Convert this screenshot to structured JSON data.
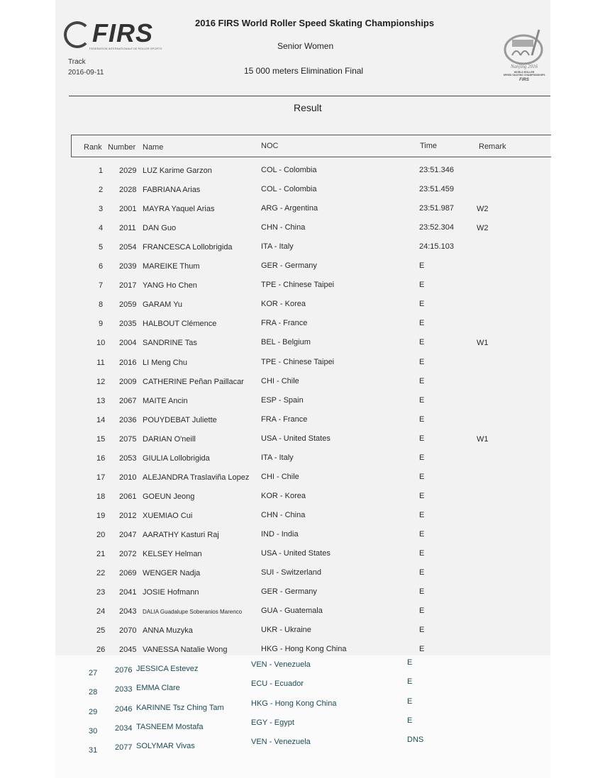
{
  "header": {
    "logo_text": "FIRS",
    "logo_subtitle": "FEDERATION INTERNATIONALE DE ROLLER SPORTS",
    "title": "2016 FIRS World Roller Speed Skating Championships",
    "category": "Senior Women",
    "event": "15 000 meters Elimination Final",
    "discipline": "Track",
    "date": "2016-09-11",
    "emblem_text": "Nanjing 2016 WORLD ROLLER SPEED SKATING CHAMPIONSHIPS FIRS",
    "section_title": "Result"
  },
  "columns": {
    "rank": "Rank",
    "number": "Number",
    "name": "Name",
    "noc": "NOC",
    "time": "Time",
    "remark": "Remark"
  },
  "rows": [
    {
      "rank": "1",
      "number": "2029",
      "name": "LUZ Karime Garzon",
      "noc": "COL - Colombia",
      "time": "23:51.346",
      "remark": ""
    },
    {
      "rank": "2",
      "number": "2028",
      "name": "FABRIANA Arias",
      "noc": "COL - Colombia",
      "time": "23:51.459",
      "remark": ""
    },
    {
      "rank": "3",
      "number": "2001",
      "name": "MAYRA Yaquel Arias",
      "noc": "ARG - Argentina",
      "time": "23:51.987",
      "remark": "W2"
    },
    {
      "rank": "4",
      "number": "2011",
      "name": "DAN Guo",
      "noc": "CHN - China",
      "time": "23:52.304",
      "remark": "W2"
    },
    {
      "rank": "5",
      "number": "2054",
      "name": "FRANCESCA Lollobrigida",
      "noc": "ITA - Italy",
      "time": "24:15.103",
      "remark": ""
    },
    {
      "rank": "6",
      "number": "2039",
      "name": "MAREIKE Thum",
      "noc": "GER - Germany",
      "time": "E",
      "remark": ""
    },
    {
      "rank": "7",
      "number": "2017",
      "name": "YANG Ho Chen",
      "noc": "TPE - Chinese Taipei",
      "time": "E",
      "remark": ""
    },
    {
      "rank": "8",
      "number": "2059",
      "name": "GARAM Yu",
      "noc": "KOR - Korea",
      "time": "E",
      "remark": ""
    },
    {
      "rank": "9",
      "number": "2035",
      "name": "HALBOUT Clémence",
      "noc": "FRA - France",
      "time": "E",
      "remark": ""
    },
    {
      "rank": "10",
      "number": "2004",
      "name": "SANDRINE Tas",
      "noc": "BEL - Belgium",
      "time": "E",
      "remark": "W1"
    },
    {
      "rank": "11",
      "number": "2016",
      "name": "LI Meng Chu",
      "noc": "TPE - Chinese Taipei",
      "time": "E",
      "remark": ""
    },
    {
      "rank": "12",
      "number": "2009",
      "name": "CATHERINE Peñan Paillacar",
      "noc": "CHI - Chile",
      "time": "E",
      "remark": ""
    },
    {
      "rank": "13",
      "number": "2067",
      "name": "MAITE Ancin",
      "noc": "ESP - Spain",
      "time": "E",
      "remark": ""
    },
    {
      "rank": "14",
      "number": "2036",
      "name": "POUYDEBAT Juliette",
      "noc": "FRA - France",
      "time": "E",
      "remark": ""
    },
    {
      "rank": "15",
      "number": "2075",
      "name": "DARIAN O'neill",
      "noc": "USA - United States",
      "time": "E",
      "remark": "W1"
    },
    {
      "rank": "16",
      "number": "2053",
      "name": "GIULIA Lollobrigida",
      "noc": "ITA - Italy",
      "time": "E",
      "remark": ""
    },
    {
      "rank": "17",
      "number": "2010",
      "name": "ALEJANDRA Traslaviña Lopez",
      "noc": "CHI - Chile",
      "time": "E",
      "remark": ""
    },
    {
      "rank": "18",
      "number": "2061",
      "name": "GOEUN Jeong",
      "noc": "KOR - Korea",
      "time": "E",
      "remark": ""
    },
    {
      "rank": "19",
      "number": "2012",
      "name": "XUEMIAO Cui",
      "noc": "CHN - China",
      "time": "E",
      "remark": ""
    },
    {
      "rank": "20",
      "number": "2047",
      "name": "AARATHY Kasturi Raj",
      "noc": "IND - India",
      "time": "E",
      "remark": ""
    },
    {
      "rank": "21",
      "number": "2072",
      "name": "KELSEY Helman",
      "noc": "USA - United States",
      "time": "E",
      "remark": ""
    },
    {
      "rank": "22",
      "number": "2069",
      "name": "WENGER Nadja",
      "noc": "SUI - Switzerland",
      "time": "E",
      "remark": ""
    },
    {
      "rank": "23",
      "number": "2041",
      "name": "JOSIE Hofmann",
      "noc": "GER - Germany",
      "time": "E",
      "remark": ""
    },
    {
      "rank": "24",
      "number": "2043",
      "name": "DALIA Guadalupe Soberanios Marenco",
      "noc": "GUA - Guatemala",
      "time": "E",
      "remark": ""
    },
    {
      "rank": "25",
      "number": "2070",
      "name": "ANNA Muzyka",
      "noc": "UKR - Ukraine",
      "time": "E",
      "remark": ""
    },
    {
      "rank": "26",
      "number": "2045",
      "name": "VANESSA Natalie Wong",
      "noc": "HKG - Hong Kong China",
      "time": "E",
      "remark": ""
    },
    {
      "rank": "27",
      "number": "2076",
      "name": "JESSICA Estevez",
      "noc": "VEN - Venezuela",
      "time": "E",
      "remark": ""
    },
    {
      "rank": "28",
      "number": "2033",
      "name": "EMMA Clare",
      "noc": "ECU - Ecuador",
      "time": "E",
      "remark": ""
    },
    {
      "rank": "29",
      "number": "2046",
      "name": "KARINNE Tsz Ching Tam",
      "noc": "HKG - Hong Kong China",
      "time": "E",
      "remark": ""
    },
    {
      "rank": "30",
      "number": "2034",
      "name": "TASNEEM Mostafa",
      "noc": "EGY - Egypt",
      "time": "E",
      "remark": ""
    },
    {
      "rank": "31",
      "number": "2077",
      "name": "SOLYMAR Vivas",
      "noc": "VEN - Venezuela",
      "time": "DNS",
      "remark": ""
    }
  ]
}
